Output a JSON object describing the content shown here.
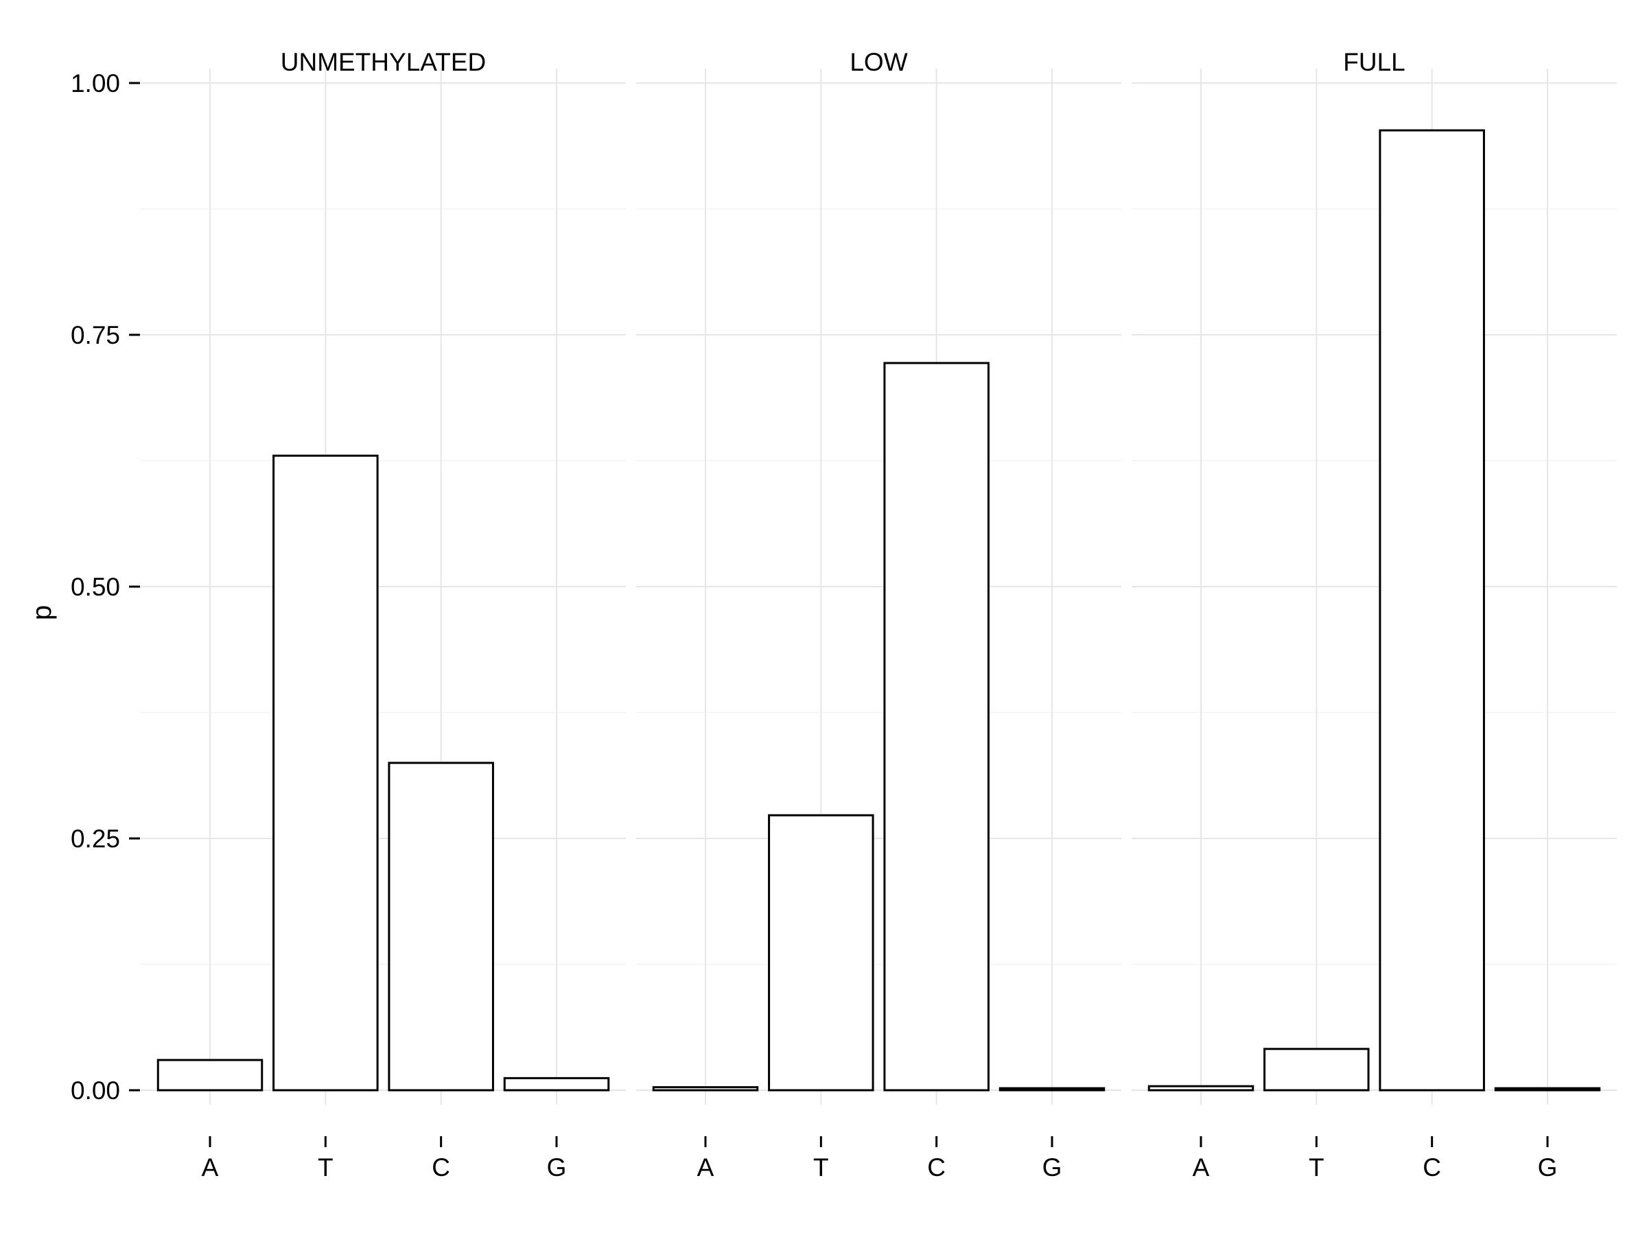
{
  "chart_data": {
    "type": "bar",
    "facets": [
      "UNMETHYLATED",
      "LOW",
      "FULL"
    ],
    "categories": [
      "A",
      "T",
      "C",
      "G"
    ],
    "series": [
      {
        "facet": "UNMETHYLATED",
        "values": [
          0.03,
          0.63,
          0.325,
          0.012
        ]
      },
      {
        "facet": "LOW",
        "values": [
          0.003,
          0.273,
          0.722,
          0.002
        ]
      },
      {
        "facet": "FULL",
        "values": [
          0.004,
          0.041,
          0.953,
          0.002
        ]
      }
    ],
    "ylabel": "p",
    "xlabel": "",
    "ylim": [
      0,
      1
    ],
    "yticks": [
      0,
      0.25,
      0.5,
      0.75,
      1
    ],
    "ytick_labels": [
      "0.00",
      "0.25",
      "0.50",
      "0.75",
      "1.00"
    ],
    "grid": true,
    "colors": {
      "bar_fill": "#ffffff",
      "bar_outline": "#000000",
      "grid": "#e6e6e6"
    }
  }
}
